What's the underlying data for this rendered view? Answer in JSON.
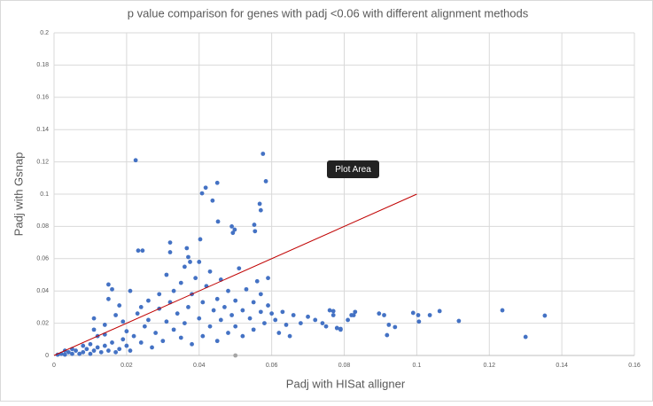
{
  "chart_data": {
    "type": "scatter",
    "title": "p value comparison for genes with padj <0.06 with different alignment methods",
    "x_label": "Padj with HISat alligner",
    "y_label": "Padj with Gsnap",
    "tooltip": "Plot Area",
    "xlim": [
      0,
      0.16
    ],
    "xticks": [
      0,
      0.02,
      0.04,
      0.06,
      0.08,
      0.1,
      0.12,
      0.14,
      0.16
    ],
    "ylim": [
      0,
      0.2
    ],
    "yticks": [
      0,
      0.02,
      0.04,
      0.06,
      0.08,
      0.1,
      0.12,
      0.14,
      0.16,
      0.18,
      0.2
    ],
    "grid": true,
    "series": [
      {
        "color": "#4472c4",
        "x": [
          0.001,
          0.002,
          0.003,
          0.004,
          0.005,
          0.006,
          0.007,
          0.008,
          0.009,
          0.01,
          0.011,
          0.012,
          0.013,
          0.014,
          0.015,
          0.016,
          0.017,
          0.018,
          0.019,
          0.02,
          0.021,
          0.003,
          0.005,
          0.008,
          0.01,
          0.012,
          0.011,
          0.011,
          0.014,
          0.014,
          0.015,
          0.016,
          0.015,
          0.017,
          0.018,
          0.019,
          0.02,
          0.021,
          0.022,
          0.023,
          0.024,
          0.024,
          0.025,
          0.026,
          0.026,
          0.027,
          0.028,
          0.029,
          0.029,
          0.03,
          0.031,
          0.031,
          0.032,
          0.033,
          0.033,
          0.034,
          0.035,
          0.035,
          0.036,
          0.036,
          0.037,
          0.038,
          0.038,
          0.039,
          0.04,
          0.04,
          0.041,
          0.041,
          0.042,
          0.043,
          0.043,
          0.044,
          0.045,
          0.045,
          0.046,
          0.046,
          0.047,
          0.048,
          0.048,
          0.049,
          0.05,
          0.05,
          0.051,
          0.052,
          0.052,
          0.053,
          0.054,
          0.055,
          0.055,
          0.056,
          0.057,
          0.057,
          0.058,
          0.059,
          0.059,
          0.06,
          0.061,
          0.062,
          0.063,
          0.064,
          0.065,
          0.066,
          0.068,
          0.07,
          0.072,
          0.074,
          0.075,
          0.076,
          0.077,
          0.078,
          0.079,
          0.081,
          0.082,
          0.083,
          0.0225,
          0.0576,
          0.0584,
          0.0418,
          0.0408,
          0.045,
          0.0437,
          0.0567,
          0.057,
          0.0452,
          0.049,
          0.0498,
          0.0493,
          0.0552,
          0.0554,
          0.0232,
          0.0244,
          0.032,
          0.032,
          0.0403,
          0.0366,
          0.037,
          0.0375,
          0.1353,
          0.13,
          0.1236,
          0.1116,
          0.1063,
          0.1036,
          0.1004,
          0.1006,
          0.099,
          0.094,
          0.0923,
          0.0918,
          0.091,
          0.0896,
          0.0826,
          0.079,
          0.078,
          0.077
        ],
        "values": [
          0.0005,
          0.001,
          0.0005,
          0.002,
          0.001,
          0.003,
          0.001,
          0.002,
          0.004,
          0.001,
          0.003,
          0.005,
          0.002,
          0.006,
          0.003,
          0.008,
          0.002,
          0.004,
          0.01,
          0.006,
          0.003,
          0.003,
          0.004,
          0.006,
          0.007,
          0.012,
          0.016,
          0.023,
          0.013,
          0.019,
          0.044,
          0.041,
          0.035,
          0.025,
          0.031,
          0.021,
          0.015,
          0.04,
          0.012,
          0.026,
          0.03,
          0.008,
          0.018,
          0.034,
          0.022,
          0.005,
          0.014,
          0.029,
          0.038,
          0.009,
          0.021,
          0.05,
          0.033,
          0.016,
          0.04,
          0.026,
          0.045,
          0.011,
          0.055,
          0.02,
          0.03,
          0.038,
          0.007,
          0.048,
          0.023,
          0.058,
          0.033,
          0.012,
          0.043,
          0.052,
          0.018,
          0.028,
          0.035,
          0.009,
          0.047,
          0.022,
          0.03,
          0.014,
          0.04,
          0.025,
          0.034,
          0.018,
          0.054,
          0.028,
          0.012,
          0.041,
          0.023,
          0.033,
          0.016,
          0.046,
          0.027,
          0.038,
          0.02,
          0.031,
          0.048,
          0.026,
          0.022,
          0.014,
          0.027,
          0.019,
          0.012,
          0.025,
          0.02,
          0.024,
          0.022,
          0.02,
          0.018,
          0.028,
          0.025,
          0.017,
          0.016,
          0.022,
          0.025,
          0.027,
          0.121,
          0.125,
          0.108,
          0.104,
          0.1005,
          0.107,
          0.096,
          0.094,
          0.09,
          0.083,
          0.08,
          0.078,
          0.076,
          0.081,
          0.077,
          0.065,
          0.065,
          0.07,
          0.064,
          0.072,
          0.0665,
          0.061,
          0.058,
          0.0247,
          0.0115,
          0.028,
          0.0214,
          0.0275,
          0.025,
          0.025,
          0.021,
          0.0264,
          0.0176,
          0.019,
          0.0126,
          0.025,
          0.026,
          0.025,
          0.0165,
          0.017,
          0.0275
        ]
      },
      {
        "color": "#a5a5a5",
        "x": [
          0.05
        ],
        "values": [
          0
        ]
      }
    ],
    "reference_line": {
      "color": "#c00000",
      "x": [
        0,
        0.1
      ],
      "values": [
        0,
        0.1
      ]
    }
  }
}
